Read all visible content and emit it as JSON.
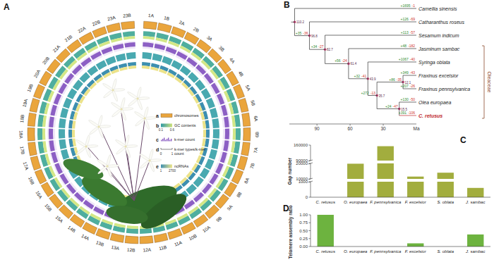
{
  "panel_a": {
    "label": "A",
    "chromosomes": [
      "1A",
      "1B",
      "2A",
      "2B",
      "3A",
      "3B",
      "4A",
      "4B",
      "5A",
      "5B",
      "6A",
      "6B",
      "7A",
      "7B",
      "8A",
      "8B",
      "9A",
      "9B",
      "10A",
      "10B",
      "11A",
      "11B",
      "12A",
      "12B",
      "13A",
      "13B",
      "14A",
      "14B",
      "15A",
      "15B",
      "16A",
      "16B",
      "17A",
      "17B",
      "18A",
      "18B",
      "19A",
      "19B",
      "20A",
      "20B",
      "21A",
      "21B",
      "22A",
      "22B",
      "23A",
      "23B"
    ],
    "legend": [
      {
        "key": "a",
        "name": [
          "chromosomes"
        ]
      },
      {
        "key": "b",
        "name": [
          "GC contents"
        ],
        "scale": [
          0.1,
          0.6
        ]
      },
      {
        "key": "c",
        "name": [
          "k-mer count"
        ]
      },
      {
        "key": "d",
        "name": [
          "k-mer types/k-mer",
          "count"
        ],
        "scale": [
          0,
          1
        ]
      },
      {
        "key": "e",
        "name": [
          "ncRNAs"
        ],
        "scale": [
          1,
          2700
        ]
      }
    ]
  },
  "panel_b": {
    "label": "B",
    "xlim": [
      115,
      0
    ],
    "xticks": [
      90,
      60,
      30
    ],
    "x_unit": "Ma",
    "clade": {
      "label": "Oleaceae",
      "from": 3,
      "to": 8
    },
    "tips": [
      {
        "name": "Camellia sinensis",
        "gain": "+1695",
        "loss": "-1"
      },
      {
        "name": "Catharanthus roseus",
        "gain": "+126",
        "loss": "-69"
      },
      {
        "name": "Sesamum indicum",
        "gain": "+113",
        "loss": "-57"
      },
      {
        "name": "Jasminum sambac",
        "gain": "+48",
        "loss": "-182"
      },
      {
        "name": "Syringa oblata",
        "gain": "+1067",
        "loss": "-40"
      },
      {
        "name": "Fraxinus excelsior",
        "gain": "+349",
        "loss": "-43"
      },
      {
        "name": "Fraxinus pennsylvanica",
        "gain": "+207",
        "loss": "-26"
      },
      {
        "name": "Olea europaea",
        "gain": "+130",
        "loss": "-50"
      },
      {
        "name": "C. retusus",
        "gain": "+391",
        "loss": "-106",
        "color": "#c0282d"
      }
    ],
    "tree": {
      "age": 110.2,
      "children": [
        {
          "tip": 0
        },
        {
          "age": 96.8,
          "gain": "+35",
          "loss": "-36",
          "children": [
            {
              "tip": 1
            },
            {
              "age": 82.7,
              "gain": "+34",
              "loss": "-27",
              "children": [
                {
                  "tip": 2
                },
                {
                  "age": 61.4,
                  "gain": "+56",
                  "loss": "-24",
                  "children": [
                    {
                      "tip": 3
                    },
                    {
                      "age": 43.9,
                      "gain": "+32",
                      "loss": "-41",
                      "children": [
                        {
                          "tip": 4
                        },
                        {
                          "age": 35.7,
                          "gain": "+272",
                          "loss": "-13",
                          "children": [
                            {
                              "age": 12.1,
                              "gain": "+86",
                              "loss": "-35",
                              "children": [
                                {
                                  "tip": 5
                                },
                                {
                                  "tip": 6
                                }
                              ]
                            },
                            {
                              "age": 15.5,
                              "gain": "+24",
                              "loss": "-47",
                              "children": [
                                {
                                  "tip": 7
                                },
                                {
                                  "tip": 8
                                }
                              ]
                            }
                          ]
                        }
                      ]
                    }
                  ]
                }
              ]
            }
          ]
        }
      ]
    }
  },
  "chart_data": [
    {
      "type": "bar",
      "label": "C",
      "y_label": "Gap number",
      "categories": [
        "C. retusus",
        "O. europaea",
        "F. pennsylvanica",
        "F. excelsior",
        "S. oblata",
        "J. sambac"
      ],
      "values": [
        0,
        19800,
        155000,
        11500,
        14000,
        600
      ],
      "color": "#a2ad3e",
      "ylim": [
        0,
        160000
      ],
      "yticks": [
        0,
        1000,
        10000,
        20000,
        90000,
        160000
      ],
      "axis_breaks": [
        [
          1000,
          10000
        ],
        [
          20000,
          90000
        ]
      ],
      "grid": false
    },
    {
      "type": "bar",
      "label": "D",
      "y_label": "Telomere assembly ratio",
      "categories": [
        "C. retusus",
        "O. europaea",
        "F. pennsylvanica",
        "F. excelsior",
        "S. oblata",
        "J. sambac"
      ],
      "values": [
        1.0,
        0,
        0,
        0.1,
        0,
        0.38
      ],
      "color": "#6db33f",
      "ylim": [
        0,
        1
      ],
      "yticks": [
        {
          "value": 0,
          "label": "0.00"
        },
        {
          "value": 0.25,
          "label": "0.25"
        },
        {
          "value": 0.5,
          "label": "0.50"
        },
        {
          "value": 0.75,
          "label": "0.75"
        },
        {
          "value": 1,
          "label": "1.00"
        }
      ],
      "grid": false
    }
  ]
}
